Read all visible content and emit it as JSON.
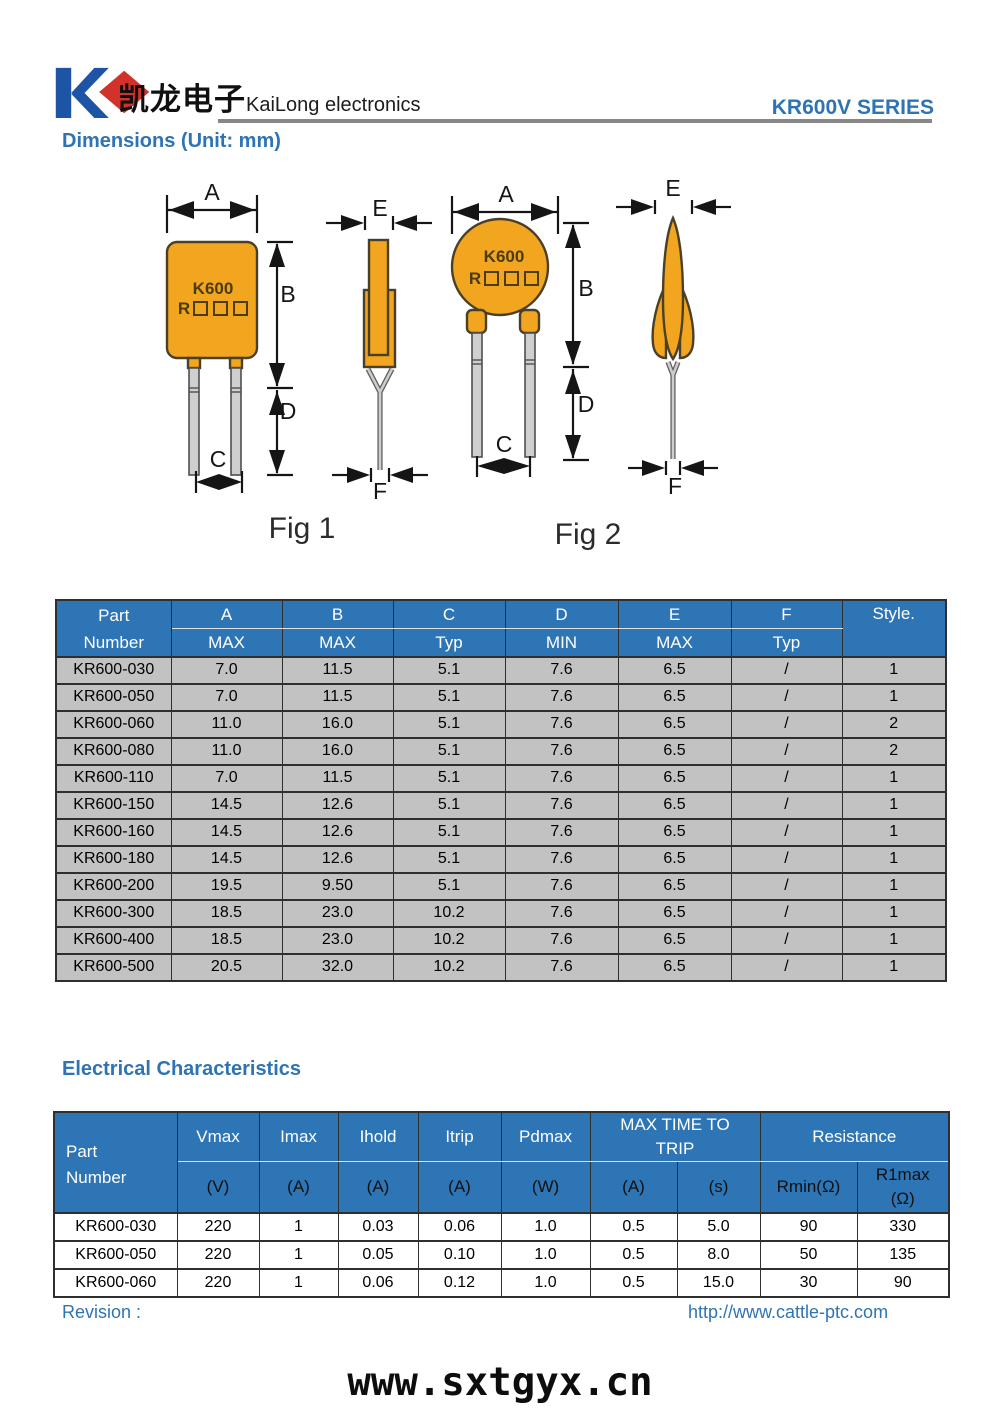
{
  "header": {
    "logo_cn": "凯龙电子",
    "company": "KaiLong electronics",
    "series": "KR600V SERIES"
  },
  "dimensions": {
    "title": "Dimensions (Unit: mm)",
    "marking_line1": "K600",
    "marking_prefix": "R",
    "labels": {
      "A": "A",
      "B": "B",
      "C": "C",
      "D": "D",
      "E": "E",
      "F": "F"
    },
    "fig1_caption": "Fig 1",
    "fig2_caption": "Fig 2"
  },
  "dim_table": {
    "headers": {
      "part": [
        "Part",
        "Number"
      ],
      "cols": [
        {
          "name": "A",
          "sub": "MAX"
        },
        {
          "name": "B",
          "sub": "MAX"
        },
        {
          "name": "C",
          "sub": "Typ"
        },
        {
          "name": "D",
          "sub": "MIN"
        },
        {
          "name": "E",
          "sub": "MAX"
        },
        {
          "name": "F",
          "sub": "Typ"
        }
      ],
      "style": "Style."
    },
    "rows": [
      [
        "KR600-030",
        "7.0",
        "11.5",
        "5.1",
        "7.6",
        "6.5",
        "/",
        "1"
      ],
      [
        "KR600-050",
        "7.0",
        "11.5",
        "5.1",
        "7.6",
        "6.5",
        "/",
        "1"
      ],
      [
        "KR600-060",
        "11.0",
        "16.0",
        "5.1",
        "7.6",
        "6.5",
        "/",
        "2"
      ],
      [
        "KR600-080",
        "11.0",
        "16.0",
        "5.1",
        "7.6",
        "6.5",
        "/",
        "2"
      ],
      [
        "KR600-110",
        "7.0",
        "11.5",
        "5.1",
        "7.6",
        "6.5",
        "/",
        "1"
      ],
      [
        "KR600-150",
        "14.5",
        "12.6",
        "5.1",
        "7.6",
        "6.5",
        "/",
        "1"
      ],
      [
        "KR600-160",
        "14.5",
        "12.6",
        "5.1",
        "7.6",
        "6.5",
        "/",
        "1"
      ],
      [
        "KR600-180",
        "14.5",
        "12.6",
        "5.1",
        "7.6",
        "6.5",
        "/",
        "1"
      ],
      [
        "KR600-200",
        "19.5",
        "9.50",
        "5.1",
        "7.6",
        "6.5",
        "/",
        "1"
      ],
      [
        "KR600-300",
        "18.5",
        "23.0",
        "10.2",
        "7.6",
        "6.5",
        "/",
        "1"
      ],
      [
        "KR600-400",
        "18.5",
        "23.0",
        "10.2",
        "7.6",
        "6.5",
        "/",
        "1"
      ],
      [
        "KR600-500",
        "20.5",
        "32.0",
        "10.2",
        "7.6",
        "6.5",
        "/",
        "1"
      ]
    ]
  },
  "electrical": {
    "title": "Electrical Characteristics"
  },
  "elec_table": {
    "headers": {
      "part": [
        "Part",
        "Number"
      ],
      "vmax": "Vmax",
      "imax": "Imax",
      "ihold": "Ihold",
      "itrip": "Itrip",
      "pdmax": "Pdmax",
      "max_time_line1": "MAX TIME TO",
      "max_time_line2": "TRIP",
      "resistance": "Resistance",
      "units": [
        "(V)",
        "(A)",
        "(A)",
        "(A)",
        "(W)",
        "(A)",
        "(s)"
      ],
      "rmin": "Rmin(Ω)",
      "r1max_line1": "R1max",
      "r1max_line2": "(Ω)"
    },
    "rows": [
      [
        "KR600-030",
        "220",
        "1",
        "0.03",
        "0.06",
        "1.0",
        "0.5",
        "5.0",
        "90",
        "330"
      ],
      [
        "KR600-050",
        "220",
        "1",
        "0.05",
        "0.10",
        "1.0",
        "0.5",
        "8.0",
        "50",
        "135"
      ],
      [
        "KR600-060",
        "220",
        "1",
        "0.06",
        "0.12",
        "1.0",
        "0.5",
        "15.0",
        "30",
        "90"
      ]
    ]
  },
  "footer": {
    "revision": "Revision :",
    "url": "http://www.cattle-ptc.com",
    "watermark": "www.sxtgyx.cn"
  },
  "colors": {
    "accent_blue": "#2E74B5",
    "table_header_blue": "#2E75B6",
    "row_gray": "#C2C2C2",
    "body_orange": "#F2A51E",
    "logo_blue": "#1D54A6",
    "logo_red": "#D2322A"
  }
}
